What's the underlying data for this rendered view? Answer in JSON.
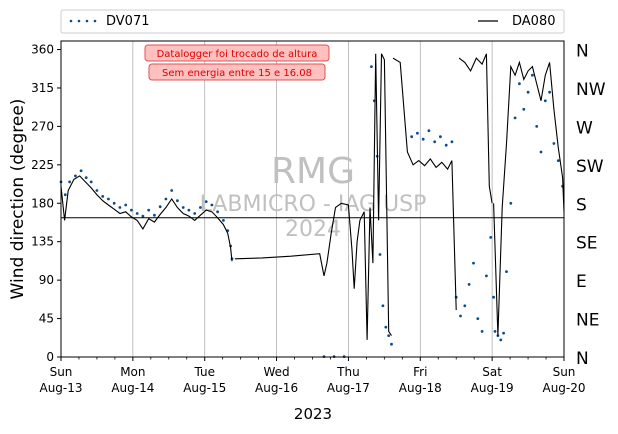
{
  "chart_data": {
    "type": "line",
    "ylabel": "Wind direction (degree)",
    "xlabel": "2023",
    "ylim": [
      0,
      370
    ],
    "xlim": [
      0,
      7
    ],
    "yticks": [
      0,
      45,
      90,
      135,
      180,
      225,
      270,
      315,
      360
    ],
    "xticks": [
      {
        "x": 0,
        "day": "Sun",
        "date": "Aug-13"
      },
      {
        "x": 1,
        "day": "Mon",
        "date": "Aug-14"
      },
      {
        "x": 2,
        "day": "Tue",
        "date": "Aug-15"
      },
      {
        "x": 3,
        "day": "Wed",
        "date": "Aug-16"
      },
      {
        "x": 4,
        "day": "Thu",
        "date": "Aug-17"
      },
      {
        "x": 5,
        "day": "Fri",
        "date": "Aug-18"
      },
      {
        "x": 6,
        "day": "Sat",
        "date": "Aug-19"
      },
      {
        "x": 7,
        "day": "Sun",
        "date": "Aug-20"
      }
    ],
    "compass": [
      {
        "y": 360,
        "label": "N"
      },
      {
        "y": 315,
        "label": "NW"
      },
      {
        "y": 270,
        "label": "W"
      },
      {
        "y": 225,
        "label": "SW"
      },
      {
        "y": 180,
        "label": "S"
      },
      {
        "y": 135,
        "label": "SE"
      },
      {
        "y": 90,
        "label": "E"
      },
      {
        "y": 45,
        "label": "NE"
      },
      {
        "y": 0,
        "label": "N"
      }
    ],
    "grid": "vertical",
    "legend_position": "top",
    "reference_line": 163,
    "watermark": [
      "RMG",
      "LABMICRO - IAG USP",
      "2024"
    ],
    "annotations": [
      "Datalogger foi trocado de altura",
      "Sem energia entre 15 e 16.08"
    ],
    "series": [
      {
        "name": "DV071",
        "style": "dots",
        "color": "#0b4d8c",
        "segments": [
          [
            [
              0,
              205
            ],
            [
              0.06,
              190
            ],
            [
              0.12,
              205
            ],
            [
              0.2,
              212
            ],
            [
              0.28,
              218
            ],
            [
              0.35,
              210
            ],
            [
              0.42,
              205
            ],
            [
              0.5,
              195
            ],
            [
              0.58,
              188
            ],
            [
              0.66,
              185
            ],
            [
              0.74,
              180
            ],
            [
              0.82,
              175
            ],
            [
              0.9,
              178
            ],
            [
              0.98,
              172
            ],
            [
              1.06,
              168
            ],
            [
              1.14,
              165
            ],
            [
              1.22,
              172
            ],
            [
              1.3,
              166
            ],
            [
              1.38,
              176
            ],
            [
              1.46,
              185
            ],
            [
              1.54,
              195
            ],
            [
              1.62,
              183
            ],
            [
              1.7,
              175
            ],
            [
              1.78,
              172
            ],
            [
              1.86,
              168
            ],
            [
              1.94,
              175
            ],
            [
              2.02,
              182
            ],
            [
              2.1,
              178
            ],
            [
              2.18,
              170
            ],
            [
              2.26,
              160
            ],
            [
              2.32,
              148
            ],
            [
              2.36,
              130
            ],
            [
              2.38,
              115
            ]
          ],
          [
            [
              3.66,
              0.5
            ],
            [
              3.8,
              0.5
            ],
            [
              3.94,
              0.5
            ]
          ],
          [
            [
              4.32,
              340
            ],
            [
              4.36,
              300
            ],
            [
              4.4,
              235
            ],
            [
              4.44,
              120
            ],
            [
              4.48,
              60
            ],
            [
              4.52,
              35
            ],
            [
              4.56,
              25
            ],
            [
              4.6,
              15
            ]
          ],
          [
            [
              4.88,
              258
            ],
            [
              4.96,
              262
            ],
            [
              5.04,
              255
            ],
            [
              5.12,
              265
            ],
            [
              5.2,
              252
            ],
            [
              5.28,
              258
            ],
            [
              5.36,
              248
            ],
            [
              5.44,
              252
            ]
          ],
          [
            [
              5.5,
              70
            ],
            [
              5.56,
              48
            ],
            [
              5.62,
              60
            ],
            [
              5.68,
              85
            ],
            [
              5.74,
              110
            ],
            [
              5.8,
              45
            ],
            [
              5.86,
              30
            ],
            [
              5.92,
              95
            ],
            [
              5.98,
              140
            ],
            [
              6.02,
              70
            ]
          ],
          [
            [
              6.04,
              30
            ],
            [
              6.08,
              25
            ],
            [
              6.12,
              20
            ],
            [
              6.16,
              28
            ],
            [
              6.2,
              100
            ],
            [
              6.26,
              180
            ],
            [
              6.32,
              280
            ],
            [
              6.38,
              320
            ],
            [
              6.44,
              290
            ],
            [
              6.5,
              310
            ],
            [
              6.56,
              330
            ],
            [
              6.62,
              270
            ],
            [
              6.68,
              240
            ],
            [
              6.74,
              300
            ],
            [
              6.8,
              310
            ],
            [
              6.86,
              250
            ],
            [
              6.92,
              230
            ],
            [
              6.98,
              200
            ]
          ]
        ]
      },
      {
        "name": "DA080",
        "style": "line",
        "color": "#000000",
        "segments": [
          [
            [
              0,
              200
            ],
            [
              0.05,
              160
            ],
            [
              0.1,
              195
            ],
            [
              0.18,
              208
            ],
            [
              0.26,
              212
            ],
            [
              0.34,
              205
            ],
            [
              0.42,
              198
            ],
            [
              0.5,
              190
            ],
            [
              0.58,
              183
            ],
            [
              0.66,
              178
            ],
            [
              0.74,
              173
            ],
            [
              0.82,
              168
            ],
            [
              0.9,
              170
            ],
            [
              0.98,
              164
            ],
            [
              1.06,
              160
            ],
            [
              1.14,
              150
            ],
            [
              1.22,
              162
            ],
            [
              1.3,
              158
            ],
            [
              1.38,
              167
            ],
            [
              1.46,
              175
            ],
            [
              1.54,
              185
            ],
            [
              1.62,
              175
            ],
            [
              1.7,
              168
            ],
            [
              1.78,
              165
            ],
            [
              1.86,
              160
            ],
            [
              1.94,
              166
            ],
            [
              2.02,
              172
            ],
            [
              2.1,
              170
            ],
            [
              2.18,
              163
            ],
            [
              2.26,
              155
            ],
            [
              2.32,
              145
            ],
            [
              2.36,
              128
            ],
            [
              2.38,
              112
            ]
          ],
          [
            [
              2.42,
              115
            ],
            [
              2.8,
              116
            ],
            [
              3.2,
              118
            ],
            [
              3.6,
              121
            ],
            [
              3.66,
              95
            ],
            [
              3.7,
              110
            ],
            [
              3.76,
              145
            ],
            [
              3.82,
              175
            ],
            [
              3.9,
              180
            ],
            [
              4.0,
              178
            ],
            [
              4.05,
              125
            ],
            [
              4.08,
              80
            ],
            [
              4.12,
              135
            ],
            [
              4.16,
              160
            ],
            [
              4.22,
              170
            ],
            [
              4.26,
              20
            ],
            [
              4.3,
              175
            ],
            [
              4.34,
              110
            ],
            [
              4.38,
              355
            ],
            [
              4.42,
              160
            ],
            [
              4.46,
              355
            ],
            [
              4.5,
              348
            ],
            [
              4.56,
              30
            ],
            [
              4.6,
              25
            ]
          ],
          [
            [
              4.62,
              350
            ],
            [
              4.72,
              345
            ],
            [
              4.82,
              240
            ],
            [
              4.9,
              225
            ],
            [
              4.98,
              230
            ],
            [
              5.06,
              224
            ],
            [
              5.14,
              232
            ],
            [
              5.22,
              222
            ],
            [
              5.3,
              228
            ],
            [
              5.38,
              220
            ],
            [
              5.44,
              230
            ],
            [
              5.5,
              55
            ]
          ],
          [
            [
              5.54,
              350
            ],
            [
              5.62,
              345
            ],
            [
              5.7,
              335
            ],
            [
              5.78,
              350
            ],
            [
              5.86,
              343
            ],
            [
              5.92,
              355
            ],
            [
              5.96,
              200
            ],
            [
              6.0,
              180
            ]
          ],
          [
            [
              6.02,
              180
            ],
            [
              6.08,
              25
            ],
            [
              6.14,
              175
            ],
            [
              6.2,
              250
            ],
            [
              6.26,
              340
            ],
            [
              6.32,
              330
            ],
            [
              6.38,
              345
            ],
            [
              6.44,
              325
            ],
            [
              6.5,
              335
            ],
            [
              6.56,
              340
            ],
            [
              6.62,
              320
            ],
            [
              6.68,
              300
            ],
            [
              6.74,
              330
            ],
            [
              6.8,
              345
            ],
            [
              6.86,
              290
            ],
            [
              6.92,
              245
            ],
            [
              6.98,
              210
            ],
            [
              7.0,
              170
            ]
          ]
        ]
      }
    ]
  }
}
